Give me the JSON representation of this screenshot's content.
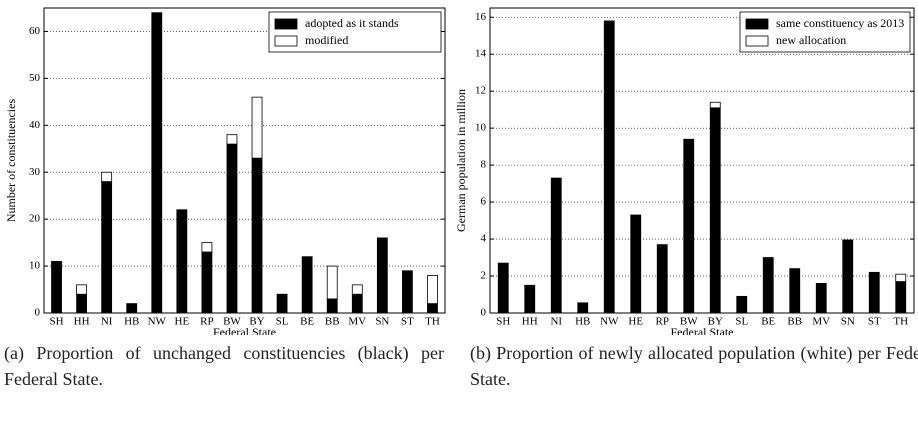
{
  "chart_data": [
    {
      "type": "stacked_bar",
      "xlabel": "Federal State",
      "ylabel": "Number of constituencies",
      "categories": [
        "SH",
        "HH",
        "NI",
        "HB",
        "NW",
        "HE",
        "RP",
        "BW",
        "BY",
        "SL",
        "BE",
        "BB",
        "MV",
        "SN",
        "ST",
        "TH"
      ],
      "series": [
        {
          "name": "adopted as it stands",
          "color": "#000000",
          "values": [
            11,
            4,
            28,
            2,
            64,
            22,
            13,
            36,
            33,
            4,
            12,
            3,
            4,
            16,
            9,
            2
          ]
        },
        {
          "name": "modified",
          "color": "#ffffff",
          "values": [
            0,
            2,
            2,
            0,
            0,
            0,
            2,
            2,
            13,
            0,
            0,
            7,
            2,
            0,
            0,
            6
          ]
        }
      ],
      "ylim": [
        0,
        65
      ],
      "yticks": [
        0,
        10,
        20,
        30,
        40,
        50,
        60
      ],
      "grid": true,
      "legend": "upper right",
      "caption": "(a) Proportion of unchanged constituencies (black) per Federal State."
    },
    {
      "type": "stacked_bar",
      "xlabel": "Federal State",
      "ylabel": "German population in million",
      "categories": [
        "SH",
        "HH",
        "NI",
        "HB",
        "NW",
        "HE",
        "RP",
        "BW",
        "BY",
        "SL",
        "BE",
        "BB",
        "MV",
        "SN",
        "ST",
        "TH"
      ],
      "series": [
        {
          "name": "same constituency as 2013",
          "color": "#000000",
          "values": [
            2.7,
            1.5,
            7.3,
            0.55,
            15.8,
            5.3,
            3.7,
            9.4,
            11.1,
            0.9,
            3.0,
            2.4,
            1.6,
            3.95,
            2.2,
            1.7
          ]
        },
        {
          "name": "new allocation",
          "color": "#ffffff",
          "values": [
            0,
            0,
            0,
            0,
            0,
            0,
            0,
            0,
            0.3,
            0,
            0,
            0,
            0,
            0,
            0,
            0.4
          ]
        }
      ],
      "ylim": [
        0,
        16.5
      ],
      "yticks": [
        0,
        2,
        4,
        6,
        8,
        10,
        12,
        14,
        16
      ],
      "grid": true,
      "legend": "upper right",
      "caption": "(b) Proportion of newly allocated population (white) per Federal State."
    }
  ]
}
